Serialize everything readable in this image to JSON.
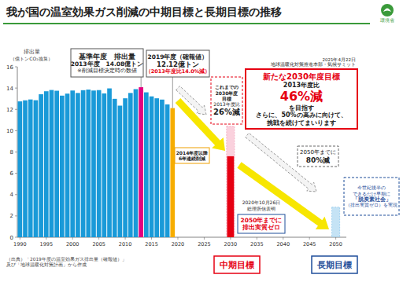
{
  "chart_data": {
    "type": "bar",
    "title": "我が国の温室効果ガス削減の中期目標と長期目標の推移",
    "logo": "環境省",
    "y_label": [
      "排出量",
      "（億トンCO₂換算）"
    ],
    "x": [
      1990,
      1991,
      1992,
      1993,
      1994,
      1995,
      1996,
      1997,
      1998,
      1999,
      2000,
      2001,
      2002,
      2003,
      2004,
      2005,
      2006,
      2007,
      2008,
      2009,
      2010,
      2011,
      2012,
      2013,
      2014,
      2015,
      2016,
      2017,
      2018,
      2019,
      2030,
      2030,
      2050
    ],
    "series": [
      {
        "type": "bar",
        "line_style": "solid",
        "colors": [
          "#1a9ad8",
          "#1a9ad8",
          "#1a9ad8",
          "#1a9ad8",
          "#1a9ad8",
          "#1a9ad8",
          "#1a9ad8",
          "#1a9ad8",
          "#1a9ad8",
          "#1a9ad8",
          "#1a9ad8",
          "#1a9ad8",
          "#1a9ad8",
          "#1a9ad8",
          "#1a9ad8",
          "#1a9ad8",
          "#1a9ad8",
          "#1a9ad8",
          "#1a9ad8",
          "#1a9ad8",
          "#1a9ad8",
          "#1a9ad8",
          "#1a9ad8",
          "#e4007f",
          "#1a9ad8",
          "#1a9ad8",
          "#1a9ad8",
          "#1a9ad8",
          "#1a9ad8",
          "#f6ad00",
          null,
          null,
          null
        ],
        "values": [
          12.75,
          12.85,
          12.93,
          12.86,
          13.42,
          13.7,
          13.82,
          13.75,
          13.29,
          13.48,
          13.77,
          13.54,
          13.8,
          13.86,
          13.77,
          13.81,
          13.5,
          13.97,
          12.99,
          12.35,
          13.04,
          13.54,
          13.9,
          14.08,
          13.6,
          13.22,
          13.04,
          12.92,
          12.47,
          12.12,
          null,
          null,
          null
        ]
      },
      {
        "type": "bar",
        "line_style": "dashed",
        "colors": [
          null,
          null,
          null,
          null,
          null,
          null,
          null,
          null,
          null,
          null,
          null,
          null,
          null,
          null,
          null,
          null,
          null,
          null,
          null,
          null,
          null,
          null,
          null,
          null,
          null,
          null,
          null,
          null,
          null,
          null,
          "#f6b3c6",
          null,
          "#9fd0ef"
        ],
        "values": [
          null,
          null,
          null,
          null,
          null,
          null,
          null,
          null,
          null,
          null,
          null,
          null,
          null,
          null,
          null,
          null,
          null,
          null,
          null,
          null,
          null,
          null,
          null,
          null,
          null,
          null,
          null,
          null,
          null,
          null,
          10.42,
          null,
          2.82
        ]
      },
      {
        "type": "bar",
        "line_style": "solid",
        "color": "#e60012",
        "values": [
          null,
          null,
          null,
          null,
          null,
          null,
          null,
          null,
          null,
          null,
          null,
          null,
          null,
          null,
          null,
          null,
          null,
          null,
          null,
          null,
          null,
          null,
          null,
          null,
          null,
          null,
          null,
          null,
          null,
          null,
          null,
          7.6,
          null
        ]
      }
    ],
    "xlim": [
      1989.5,
      2052
    ],
    "xticks": [
      1990,
      1995,
      2000,
      2005,
      2010,
      2015,
      2020,
      2025,
      2030,
      2035,
      2040,
      2045,
      2050
    ],
    "ylim": [
      0,
      16
    ],
    "yticks": [
      0,
      2,
      4,
      6,
      8,
      10,
      12,
      14,
      16
    ],
    "grid": false,
    "annotations": [
      {
        "lines": [
          "基準年度　排出量",
          "2013年度　14.08億トン",
          "※削減目標決定時の数値"
        ]
      },
      {
        "lines": [
          "2019年度（確報値）",
          "12.12億トン",
          "（2013年度比14.0%減）"
        ]
      },
      {
        "lines": [
          "2014年度以降",
          "6年連続削減"
        ]
      },
      {
        "lines": [
          "これまでの",
          "2030年度",
          "目標",
          "2013年度比",
          "26%減"
        ]
      },
      {
        "lines": [
          "新たな2030年度目標",
          "2013年度比",
          "46%減",
          "を目指す",
          "さらに、50%の高みに向けて、",
          "挑戦を続けてまいります"
        ]
      },
      {
        "lines": [
          "2021年4月22日",
          "地球温暖化対策推進本部・気候サミット"
        ]
      },
      {
        "lines": [
          "2050年までに",
          "80%減"
        ]
      },
      {
        "lines": [
          "2020年10月26日",
          "総理所信表明"
        ]
      },
      {
        "lines": [
          "2050年までに",
          "排出実質ゼロ"
        ]
      },
      {
        "lines": [
          "今世紀後半の",
          "できるだけ早期に",
          "「脱炭素社会」",
          "（排出実質ゼロ）を実現"
        ]
      },
      {
        "lines": [
          "（出典）「2019年度の温室効果ガス排出量（確報値）」",
          "及び「地球温暖化対策計画」から作成"
        ]
      },
      {
        "lines": [
          "中期目標"
        ]
      },
      {
        "lines": [
          "長期目標"
        ]
      }
    ]
  }
}
